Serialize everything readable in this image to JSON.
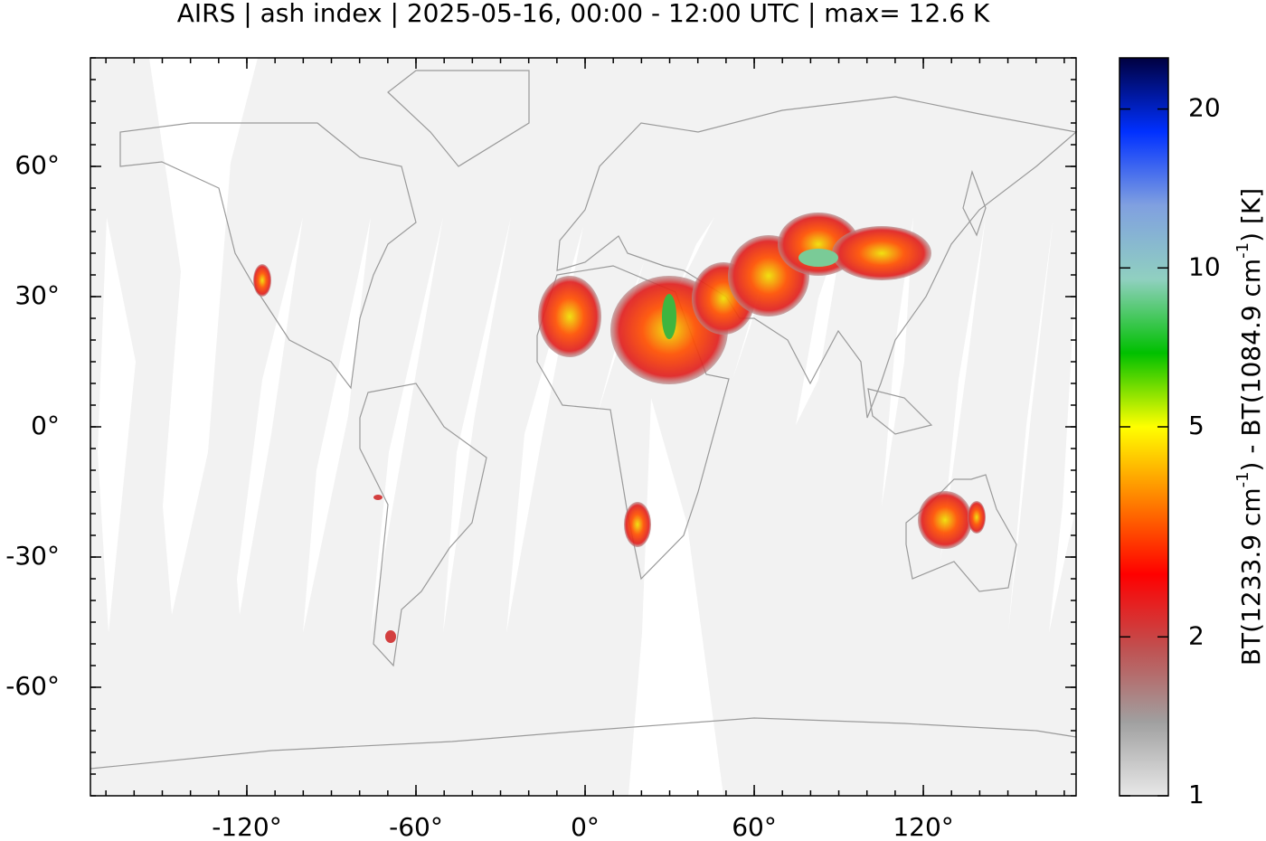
{
  "chart_data": {
    "type": "map",
    "title": "AIRS | ash index | 2025-05-16, 00:00 - 12:00 UTC | max= 12.6 K",
    "xlim": [
      -175.5,
      174.2
    ],
    "ylim": [
      -85,
      85
    ],
    "xticks": [
      {
        "value": -120,
        "label": "-120°"
      },
      {
        "value": -60,
        "label": "-60°"
      },
      {
        "value": 0,
        "label": "0°"
      },
      {
        "value": 60,
        "label": "60°"
      },
      {
        "value": 120,
        "label": "120°"
      }
    ],
    "yticks": [
      {
        "value": -60,
        "label": "-60°"
      },
      {
        "value": -30,
        "label": "-30°"
      },
      {
        "value": 0,
        "label": "0°"
      },
      {
        "value": 30,
        "label": "30°"
      },
      {
        "value": 60,
        "label": "60°"
      }
    ],
    "colorbar": {
      "scale": "log",
      "ylim": [
        1,
        25
      ],
      "yticks": [
        1,
        2,
        5,
        10,
        20
      ],
      "colors": [
        "#e8e8e8",
        "#a0a0a0",
        "#c05050",
        "#ff0000",
        "#ff8000",
        "#ffff00",
        "#00c000",
        "#90d0c0",
        "#80a0e0",
        "#0030ff",
        "#000040"
      ],
      "label": [
        "BT(1233.9 cm",
        "-1",
        ") - BT(1084.9 cm",
        "-1",
        ") [K]"
      ]
    }
  }
}
